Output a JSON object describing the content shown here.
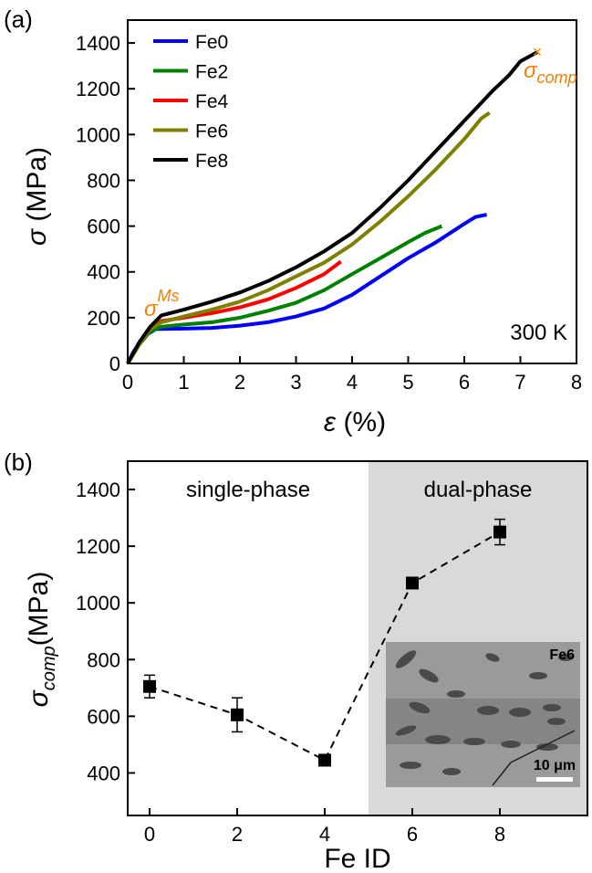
{
  "chart_data": [
    {
      "type": "line",
      "panel_label": "(a)",
      "xlabel": {
        "symbol": "ε",
        "unit": "(%)"
      },
      "ylabel": {
        "symbol": "σ",
        "unit": "(MPa)"
      },
      "xlim": [
        0,
        8
      ],
      "xticks": [
        0,
        1,
        2,
        3,
        4,
        5,
        6,
        7,
        8
      ],
      "ylim": [
        0,
        1500
      ],
      "yticks": [
        0,
        200,
        400,
        600,
        800,
        1000,
        1200,
        1400
      ],
      "legend": "upper left",
      "annotations": [
        {
          "text": "σ",
          "sub": "comp"
        },
        {
          "text": "σ",
          "sup": "Ms"
        },
        {
          "text": "300 K"
        }
      ],
      "series": [
        {
          "name": "Fe0",
          "color": "#0000ff",
          "x": [
            0,
            0.1,
            0.3,
            0.5,
            1,
            1.5,
            2,
            2.5,
            3,
            3.5,
            4,
            4.5,
            5,
            5.5,
            6,
            6.2,
            6.4
          ],
          "values": [
            0,
            50,
            120,
            150,
            152,
            155,
            165,
            180,
            205,
            240,
            300,
            380,
            460,
            530,
            610,
            640,
            650
          ]
        },
        {
          "name": "Fe2",
          "color": "#008000",
          "x": [
            0,
            0.2,
            0.4,
            0.6,
            1,
            1.5,
            2,
            2.5,
            3,
            3.5,
            4,
            4.5,
            5,
            5.3,
            5.6
          ],
          "values": [
            0,
            80,
            140,
            160,
            170,
            180,
            200,
            230,
            265,
            320,
            390,
            460,
            530,
            570,
            600
          ]
        },
        {
          "name": "Fe4",
          "color": "#ff0000",
          "x": [
            0,
            0.2,
            0.4,
            0.6,
            1,
            1.5,
            2,
            2.5,
            3,
            3.5,
            3.8
          ],
          "values": [
            0,
            80,
            150,
            185,
            200,
            220,
            245,
            280,
            330,
            390,
            445
          ]
        },
        {
          "name": "Fe6",
          "color": "#808000",
          "x": [
            0,
            0.2,
            0.4,
            0.6,
            1,
            1.5,
            2,
            2.5,
            3,
            3.5,
            4,
            4.5,
            5,
            5.5,
            6,
            6.3,
            6.45
          ],
          "values": [
            0,
            80,
            150,
            180,
            205,
            235,
            270,
            320,
            380,
            440,
            520,
            620,
            730,
            850,
            980,
            1070,
            1095
          ]
        },
        {
          "name": "Fe8",
          "color": "#000000",
          "x": [
            0,
            0.2,
            0.4,
            0.6,
            1,
            1.5,
            2,
            2.5,
            3,
            3.5,
            4,
            4.5,
            5,
            5.5,
            6,
            6.5,
            6.8,
            7,
            7.3
          ],
          "values": [
            0,
            90,
            160,
            210,
            235,
            270,
            310,
            360,
            420,
            490,
            570,
            680,
            800,
            930,
            1060,
            1190,
            1260,
            1320,
            1360
          ]
        }
      ]
    },
    {
      "type": "line",
      "panel_label": "(b)",
      "xlabel": "Fe ID",
      "ylabel": {
        "symbol": "σ",
        "sub": "comp",
        "unit": "(MPa)"
      },
      "xlim": [
        -0.5,
        10
      ],
      "xticks": [
        0,
        2,
        4,
        6,
        8
      ],
      "ylim": [
        250,
        1500
      ],
      "yticks": [
        400,
        600,
        800,
        1000,
        1200,
        1400
      ],
      "shade_x": [
        5,
        10
      ],
      "regions": [
        "single-phase",
        "dual-phase"
      ],
      "inset": {
        "label": "Fe6",
        "scale_label": "10 μm"
      },
      "series": [
        {
          "color": "#000000",
          "marker": "square",
          "linestyle": "dashed",
          "x": [
            0,
            2,
            4,
            6,
            8
          ],
          "values": [
            705,
            605,
            445,
            1070,
            1250
          ],
          "errors": [
            40,
            60,
            10,
            15,
            45
          ]
        }
      ]
    }
  ]
}
